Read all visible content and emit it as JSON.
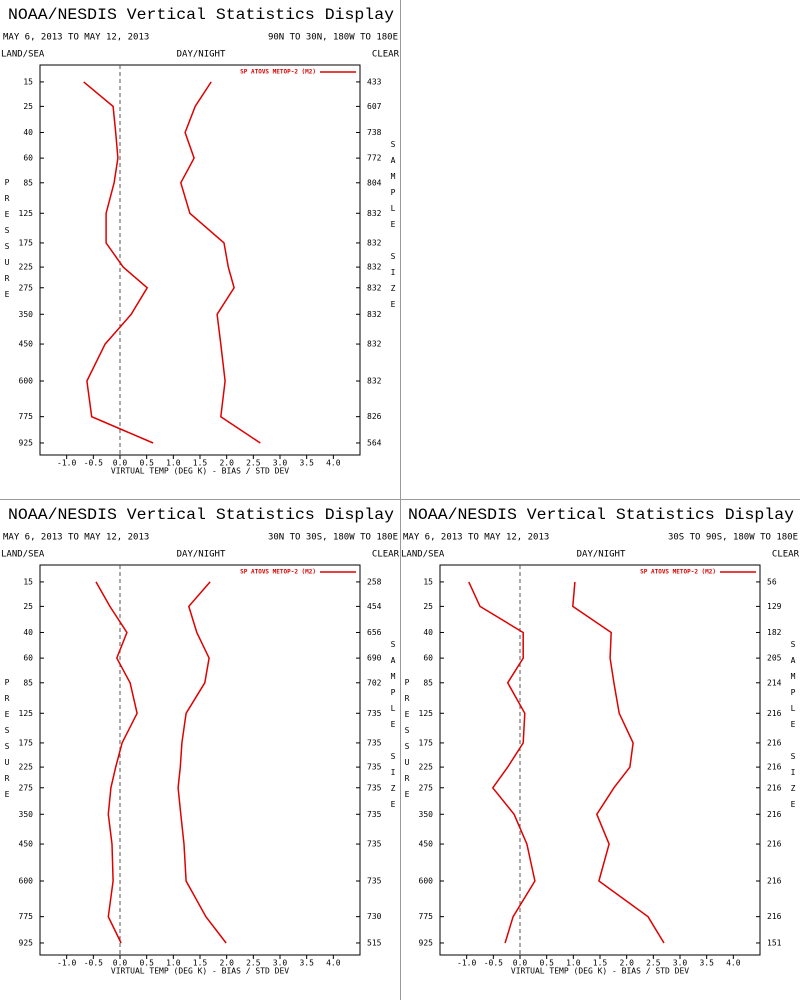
{
  "chart_data": [
    {
      "type": "line",
      "title": "NOAA/NESDIS Vertical Statistics Display",
      "date_range": "MAY 6, 2013 TO MAY 12, 2013",
      "region": "90N TO 30N, 180W TO 180E",
      "left_header": "LAND/SEA",
      "center_header": "DAY/NIGHT",
      "right_header": "CLEAR",
      "y_label": "PRESSURE",
      "y2_label": "SAMPLE SIZE",
      "x_label": "VIRTUAL TEMP (DEG K) - BIAS / STD DEV",
      "xlim": [
        -1.5,
        4.5
      ],
      "xticks": [
        {
          "value": -1.0,
          "label": "-1.0"
        },
        {
          "value": -0.5,
          "label": "-0.5"
        },
        {
          "value": 0.0,
          "label": "0.0"
        },
        {
          "value": 0.5,
          "label": "0.5"
        },
        {
          "value": 1.0,
          "label": "1.0"
        },
        {
          "value": 1.5,
          "label": "1.5"
        },
        {
          "value": 2.0,
          "label": "2.0"
        },
        {
          "value": 2.5,
          "label": "2.5"
        },
        {
          "value": 3.0,
          "label": "3.0"
        },
        {
          "value": 3.5,
          "label": "3.5"
        },
        {
          "value": 4.0,
          "label": "4.0"
        }
      ],
      "ylim": [
        1000,
        10
      ],
      "yscale": "power",
      "yexponent": 0.3,
      "yticks": [
        15,
        25,
        40,
        60,
        85,
        125,
        175,
        225,
        275,
        350,
        450,
        600,
        775,
        925
      ],
      "levels": [
        15,
        25,
        40,
        60,
        85,
        125,
        175,
        225,
        275,
        350,
        450,
        600,
        775,
        925
      ],
      "sample_size": [
        433,
        607,
        738,
        772,
        804,
        832,
        832,
        832,
        832,
        832,
        832,
        832,
        826,
        564
      ],
      "series": [
        {
          "name": "SP ATOVS METOP-2 (M2)",
          "color": "#e00000",
          "values": [
            -0.68,
            -0.13,
            -0.08,
            -0.04,
            -0.11,
            -0.26,
            -0.26,
            0.06,
            0.51,
            0.21,
            -0.28,
            -0.62,
            -0.53,
            0.62
          ],
          "std_dev": [
            1.71,
            1.41,
            1.22,
            1.39,
            1.14,
            1.31,
            1.95,
            2.03,
            2.14,
            1.82,
            1.89,
            1.97,
            1.89,
            2.63
          ]
        }
      ]
    },
    {
      "type": "line",
      "title": "NOAA/NESDIS Vertical Statistics Display",
      "date_range": "MAY 6, 2013 TO MAY 12, 2013",
      "region": "30N TO 30S, 180W TO 180E",
      "left_header": "LAND/SEA",
      "center_header": "DAY/NIGHT",
      "right_header": "CLEAR",
      "y_label": "PRESSURE",
      "y2_label": "SAMPLE SIZE",
      "x_label": "VIRTUAL TEMP (DEG K) - BIAS / STD DEV",
      "xlim": [
        -1.5,
        4.5
      ],
      "xticks": [
        {
          "value": -1.0,
          "label": "-1.0"
        },
        {
          "value": -0.5,
          "label": "-0.5"
        },
        {
          "value": 0.0,
          "label": "0.0"
        },
        {
          "value": 0.5,
          "label": "0.5"
        },
        {
          "value": 1.0,
          "label": "1.0"
        },
        {
          "value": 1.5,
          "label": "1.5"
        },
        {
          "value": 2.0,
          "label": "2.0"
        },
        {
          "value": 2.5,
          "label": "2.5"
        },
        {
          "value": 3.0,
          "label": "3.0"
        },
        {
          "value": 3.5,
          "label": "3.5"
        },
        {
          "value": 4.0,
          "label": "4.0"
        }
      ],
      "ylim": [
        1000,
        10
      ],
      "yscale": "power",
      "yexponent": 0.3,
      "yticks": [
        15,
        25,
        40,
        60,
        85,
        125,
        175,
        225,
        275,
        350,
        450,
        600,
        775,
        925
      ],
      "levels": [
        15,
        25,
        40,
        60,
        85,
        125,
        175,
        225,
        275,
        350,
        450,
        600,
        775,
        925
      ],
      "sample_size": [
        258,
        454,
        656,
        690,
        702,
        735,
        735,
        735,
        735,
        735,
        735,
        735,
        730,
        515
      ],
      "series": [
        {
          "name": "SP ATOVS METOP-2 (M2)",
          "color": "#e00000",
          "values": [
            -0.45,
            -0.19,
            0.13,
            -0.06,
            0.19,
            0.32,
            0.04,
            -0.08,
            -0.17,
            -0.22,
            -0.15,
            -0.13,
            -0.22,
            0.02
          ],
          "std_dev": [
            1.69,
            1.29,
            1.44,
            1.67,
            1.59,
            1.24,
            1.16,
            1.13,
            1.09,
            1.14,
            1.2,
            1.24,
            1.61,
            1.99
          ]
        }
      ]
    },
    {
      "type": "line",
      "title": "NOAA/NESDIS Vertical Statistics Display",
      "date_range": "MAY 6, 2013 TO MAY 12, 2013",
      "region": "30S TO 90S, 180W TO 180E",
      "left_header": "LAND/SEA",
      "center_header": "DAY/NIGHT",
      "right_header": "CLEAR",
      "y_label": "PRESSURE",
      "y2_label": "SAMPLE SIZE",
      "x_label": "VIRTUAL TEMP (DEG K) - BIAS / STD DEV",
      "xlim": [
        -1.5,
        4.5
      ],
      "xticks": [
        {
          "value": -1.0,
          "label": "-1.0"
        },
        {
          "value": -0.5,
          "label": "-0.5"
        },
        {
          "value": 0.0,
          "label": "0.0"
        },
        {
          "value": 0.5,
          "label": "0.5"
        },
        {
          "value": 1.0,
          "label": "1.0"
        },
        {
          "value": 1.5,
          "label": "1.5"
        },
        {
          "value": 2.0,
          "label": "2.0"
        },
        {
          "value": 2.5,
          "label": "2.5"
        },
        {
          "value": 3.0,
          "label": "3.0"
        },
        {
          "value": 3.5,
          "label": "3.5"
        },
        {
          "value": 4.0,
          "label": "4.0"
        }
      ],
      "ylim": [
        1000,
        10
      ],
      "yscale": "power",
      "yexponent": 0.3,
      "yticks": [
        15,
        25,
        40,
        60,
        85,
        125,
        175,
        225,
        275,
        350,
        450,
        600,
        775,
        925
      ],
      "levels": [
        15,
        25,
        40,
        60,
        85,
        125,
        175,
        225,
        275,
        350,
        450,
        600,
        775,
        925
      ],
      "sample_size": [
        56,
        129,
        182,
        205,
        214,
        216,
        216,
        216,
        216,
        216,
        216,
        216,
        216,
        151
      ],
      "series": [
        {
          "name": "SP ATOVS METOP-2 (M2)",
          "color": "#e00000",
          "values": [
            -0.96,
            -0.75,
            0.06,
            0.06,
            -0.23,
            0.09,
            0.06,
            -0.23,
            -0.51,
            -0.11,
            0.13,
            0.28,
            -0.13,
            -0.28
          ],
          "std_dev": [
            1.03,
            0.99,
            1.71,
            1.69,
            1.76,
            1.86,
            2.12,
            2.06,
            1.76,
            1.44,
            1.67,
            1.48,
            2.4,
            2.7
          ]
        }
      ]
    }
  ]
}
